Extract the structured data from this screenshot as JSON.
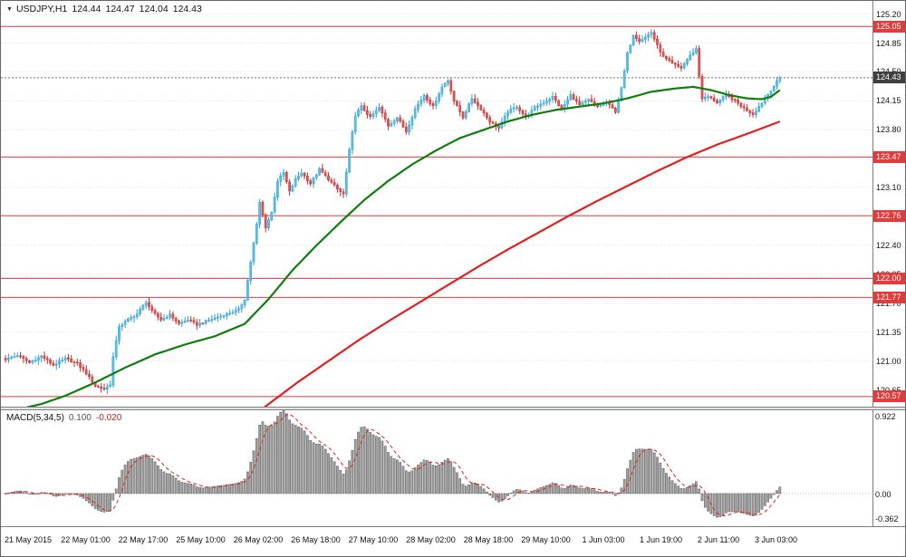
{
  "window": {
    "app": "trading-terminal-chart",
    "bg": "#ffffff"
  },
  "header": {
    "dropdown_icon": "▼",
    "symbol_tf": "USDJPY,H1",
    "open": "124.44",
    "high": "124.47",
    "low": "124.04",
    "close": "124.43"
  },
  "price_axis": {
    "ticks": [
      "125.20",
      "124.85",
      "124.50",
      "124.15",
      "123.80",
      "123.45",
      "123.10",
      "122.75",
      "122.40",
      "122.05",
      "121.70",
      "121.35",
      "121.00",
      "120.65"
    ],
    "tick_values": [
      125.2,
      124.85,
      124.5,
      124.15,
      123.8,
      123.45,
      123.1,
      122.75,
      122.4,
      122.05,
      121.7,
      121.35,
      121.0,
      120.65
    ],
    "level_badges": [
      {
        "label": "125.05",
        "value": 125.05
      },
      {
        "label": "123.47",
        "value": 123.47
      },
      {
        "label": "122.76",
        "value": 122.76
      },
      {
        "label": "122.00",
        "value": 122.0
      },
      {
        "label": "121.77",
        "value": 121.77
      },
      {
        "label": "120.57",
        "value": 120.57
      }
    ],
    "current_badge": {
      "label": "124.43",
      "value": 124.43
    }
  },
  "time_axis": {
    "labels": [
      "21 May 2015",
      "22 May 01:00",
      "22 May 17:00",
      "25 May 10:00",
      "26 May 02:00",
      "26 May 18:00",
      "27 May 10:00",
      "28 May 02:00",
      "28 May 18:00",
      "29 May 10:00",
      "1 Jun 03:00",
      "1 Jun 19:00",
      "2 Jun 11:00",
      "3 Jun 03:00"
    ]
  },
  "macd_panel": {
    "label": "MACD(5,34,5)",
    "value_main": "0.100",
    "value_signal": "-0.020",
    "axis_labels": {
      "top": "0.922",
      "zero": "0.00",
      "bottom": "-0.362"
    }
  },
  "colors": {
    "bull_fill": "#5bc0e8",
    "bull_stroke": "#2f9fd0",
    "bear_fill": "#e25656",
    "bear_stroke": "#c22f2f",
    "ma_fast": "#0f7d0f",
    "ma_slow": "#e02020",
    "level_line": "#e23b3b",
    "current_line": "#777777",
    "level_badge_bg": "#e23b3b",
    "current_badge_bg": "#3f3f3f",
    "macd_bar_fill": "#a0a0a0",
    "macd_bar_stroke": "#606060",
    "macd_signal": "#e02020",
    "grid": "#e3e3e3",
    "zero_line": "#bbbbbb"
  },
  "chart_data": [
    {
      "type": "candlestick",
      "title": "USDJPY,H1",
      "n_bars": 260,
      "y_axis": {
        "range": [
          120.45,
          125.36
        ],
        "ticks": [
          125.2,
          124.85,
          124.5,
          124.15,
          123.8,
          123.45,
          123.1,
          122.75,
          122.4,
          122.05,
          121.7,
          121.35,
          121.0,
          120.65
        ]
      },
      "x_axis": {
        "labels": [
          "21 May 2015",
          "22 May 01:00",
          "22 May 17:00",
          "25 May 10:00",
          "26 May 02:00",
          "26 May 18:00",
          "27 May 10:00",
          "28 May 02:00",
          "28 May 18:00",
          "29 May 10:00",
          "1 Jun 03:00",
          "1 Jun 19:00",
          "2 Jun 11:00",
          "3 Jun 03:00"
        ]
      },
      "last_ohlc": {
        "open": 124.44,
        "high": 124.47,
        "low": 124.04,
        "close": 124.43
      },
      "current_price": 124.43,
      "horizontal_levels": [
        125.05,
        123.47,
        122.76,
        122.0,
        121.77,
        120.57
      ],
      "close_anchors": [
        [
          0,
          121.02
        ],
        [
          4,
          121.07
        ],
        [
          8,
          120.98
        ],
        [
          12,
          121.06
        ],
        [
          16,
          120.95
        ],
        [
          20,
          121.03
        ],
        [
          24,
          120.97
        ],
        [
          27,
          120.85
        ],
        [
          30,
          120.7
        ],
        [
          33,
          120.66
        ],
        [
          35,
          120.72
        ],
        [
          36,
          121.05
        ],
        [
          38,
          121.42
        ],
        [
          41,
          121.5
        ],
        [
          44,
          121.57
        ],
        [
          47,
          121.72
        ],
        [
          49,
          121.6
        ],
        [
          52,
          121.5
        ],
        [
          55,
          121.56
        ],
        [
          58,
          121.45
        ],
        [
          61,
          121.5
        ],
        [
          64,
          121.44
        ],
        [
          67,
          121.48
        ],
        [
          70,
          121.52
        ],
        [
          74,
          121.57
        ],
        [
          78,
          121.62
        ],
        [
          80,
          121.75
        ],
        [
          82,
          122.2
        ],
        [
          84,
          122.65
        ],
        [
          85,
          122.92
        ],
        [
          87,
          122.62
        ],
        [
          89,
          122.8
        ],
        [
          91,
          123.18
        ],
        [
          93,
          123.28
        ],
        [
          95,
          123.05
        ],
        [
          97,
          123.2
        ],
        [
          99,
          123.28
        ],
        [
          102,
          123.15
        ],
        [
          105,
          123.32
        ],
        [
          108,
          123.2
        ],
        [
          111,
          123.08
        ],
        [
          113,
          123.02
        ],
        [
          115,
          123.55
        ],
        [
          117,
          123.98
        ],
        [
          119,
          124.08
        ],
        [
          122,
          123.95
        ],
        [
          125,
          124.07
        ],
        [
          128,
          123.85
        ],
        [
          131,
          123.95
        ],
        [
          134,
          123.78
        ],
        [
          137,
          124.05
        ],
        [
          140,
          124.22
        ],
        [
          143,
          124.08
        ],
        [
          146,
          124.32
        ],
        [
          148,
          124.4
        ],
        [
          150,
          124.15
        ],
        [
          153,
          123.95
        ],
        [
          156,
          124.18
        ],
        [
          159,
          124.05
        ],
        [
          162,
          123.9
        ],
        [
          165,
          123.82
        ],
        [
          168,
          124.02
        ],
        [
          171,
          124.08
        ],
        [
          174,
          123.95
        ],
        [
          177,
          124.07
        ],
        [
          180,
          124.13
        ],
        [
          183,
          124.2
        ],
        [
          186,
          124.05
        ],
        [
          189,
          124.22
        ],
        [
          192,
          124.1
        ],
        [
          195,
          124.16
        ],
        [
          198,
          124.08
        ],
        [
          201,
          124.13
        ],
        [
          204,
          124.02
        ],
        [
          206,
          124.3
        ],
        [
          208,
          124.72
        ],
        [
          210,
          124.95
        ],
        [
          212,
          124.88
        ],
        [
          214,
          124.92
        ],
        [
          216,
          124.98
        ],
        [
          218,
          124.82
        ],
        [
          220,
          124.68
        ],
        [
          223,
          124.6
        ],
        [
          226,
          124.55
        ],
        [
          229,
          124.7
        ],
        [
          231,
          124.78
        ],
        [
          232,
          124.45
        ],
        [
          233,
          124.18
        ],
        [
          235,
          124.2
        ],
        [
          238,
          124.13
        ],
        [
          241,
          124.22
        ],
        [
          244,
          124.15
        ],
        [
          247,
          124.06
        ],
        [
          250,
          123.99
        ],
        [
          252,
          124.08
        ],
        [
          254,
          124.18
        ],
        [
          256,
          124.28
        ],
        [
          258,
          124.38
        ],
        [
          259,
          124.43
        ]
      ],
      "overlays": [
        {
          "name": "ma-fast-green",
          "points": [
            [
              0,
              120.38
            ],
            [
              12,
              120.48
            ],
            [
              20,
              120.58
            ],
            [
              30,
              120.74
            ],
            [
              40,
              120.92
            ],
            [
              50,
              121.08
            ],
            [
              60,
              121.2
            ],
            [
              70,
              121.3
            ],
            [
              80,
              121.45
            ],
            [
              88,
              121.75
            ],
            [
              96,
              122.1
            ],
            [
              104,
              122.4
            ],
            [
              112,
              122.68
            ],
            [
              120,
              122.95
            ],
            [
              128,
              123.18
            ],
            [
              136,
              123.38
            ],
            [
              144,
              123.55
            ],
            [
              152,
              123.7
            ],
            [
              160,
              123.8
            ],
            [
              168,
              123.9
            ],
            [
              176,
              123.98
            ],
            [
              184,
              124.04
            ],
            [
              192,
              124.08
            ],
            [
              200,
              124.12
            ],
            [
              208,
              124.18
            ],
            [
              216,
              124.26
            ],
            [
              224,
              124.3
            ],
            [
              230,
              124.32
            ],
            [
              236,
              124.28
            ],
            [
              242,
              124.22
            ],
            [
              248,
              124.18
            ],
            [
              253,
              124.17
            ],
            [
              256,
              124.2
            ],
            [
              259,
              124.28
            ]
          ]
        },
        {
          "name": "ma-slow-red",
          "points": [
            [
              78,
              120.2
            ],
            [
              88,
              120.48
            ],
            [
              98,
              120.75
            ],
            [
              108,
              121.0
            ],
            [
              118,
              121.25
            ],
            [
              128,
              121.48
            ],
            [
              138,
              121.7
            ],
            [
              148,
              121.92
            ],
            [
              158,
              122.14
            ],
            [
              168,
              122.35
            ],
            [
              178,
              122.55
            ],
            [
              188,
              122.75
            ],
            [
              198,
              122.94
            ],
            [
              208,
              123.12
            ],
            [
              218,
              123.3
            ],
            [
              228,
              123.47
            ],
            [
              238,
              123.62
            ],
            [
              248,
              123.75
            ],
            [
              259,
              123.9
            ]
          ]
        }
      ]
    },
    {
      "type": "bar",
      "name": "MACD(5,34,5) histogram with dashed signal line",
      "params": {
        "fast": 5,
        "slow": 34,
        "signal": 5
      },
      "derived": "computed from candlestick closes",
      "y_axis": {
        "max": 0.922,
        "min": -0.362,
        "zero": 0
      },
      "current": {
        "macd": 0.1,
        "signal": -0.02
      }
    }
  ]
}
